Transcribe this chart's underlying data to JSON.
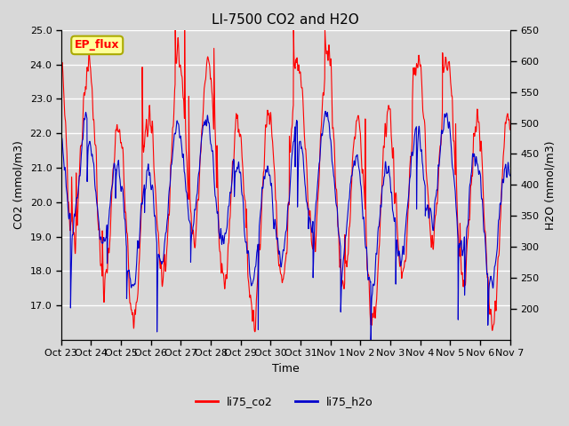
{
  "title": "LI-7500 CO2 and H2O",
  "xlabel": "Time",
  "ylabel_left": "CO2 (mmol/m3)",
  "ylabel_right": "H2O (mmol/m3)",
  "ylim_left": [
    16.0,
    25.0
  ],
  "ylim_right": [
    150,
    650
  ],
  "yticks_left": [
    17.0,
    18.0,
    19.0,
    20.0,
    21.0,
    22.0,
    23.0,
    24.0,
    25.0
  ],
  "yticks_right": [
    200,
    250,
    300,
    350,
    400,
    450,
    500,
    550,
    600,
    650
  ],
  "xtick_labels": [
    "Oct 23",
    "Oct 24",
    "Oct 25",
    "Oct 26",
    "Oct 27",
    "Oct 28",
    "Oct 29",
    "Oct 30",
    "Oct 31",
    "Nov 1",
    "Nov 2",
    "Nov 3",
    "Nov 4",
    "Nov 5",
    "Nov 6",
    "Nov 7"
  ],
  "color_co2": "#ff0000",
  "color_h2o": "#0000cc",
  "legend_label_co2": "li75_co2",
  "legend_label_h2o": "li75_h2o",
  "annotation_text": "EP_flux",
  "annotation_bg": "#ffff99",
  "annotation_border": "#aaaa00",
  "fig_facecolor": "#d8d8d8",
  "plot_bg": "#d8d8d8",
  "grid_color": "#ffffff",
  "linewidth": 0.8,
  "title_fontsize": 11,
  "axis_fontsize": 9,
  "tick_fontsize": 8,
  "n_days": 15
}
